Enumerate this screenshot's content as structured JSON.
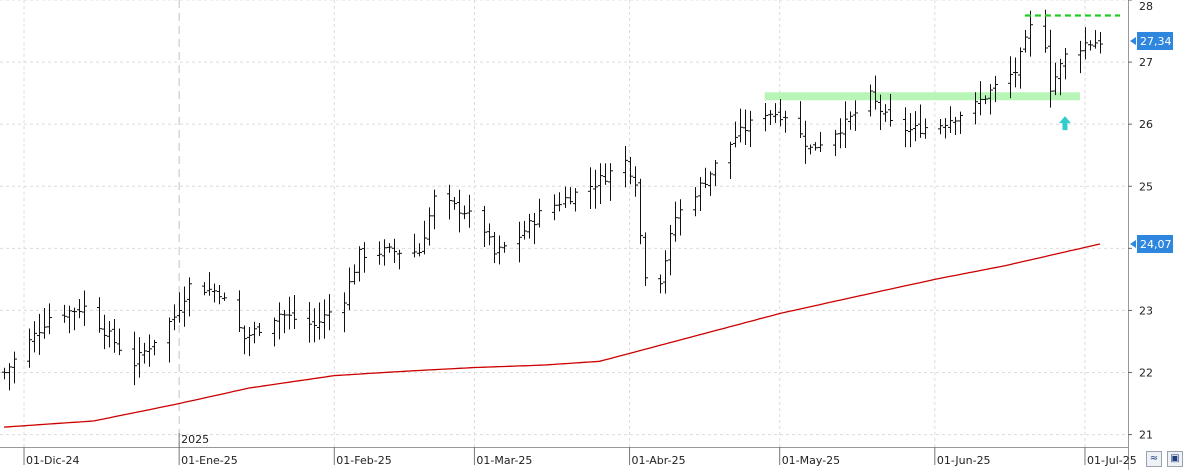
{
  "chart_data": {
    "type": "ohlc",
    "y_axis": {
      "ticks": [
        21,
        22,
        23,
        24,
        25,
        26,
        27,
        28
      ],
      "ylim": [
        20.8,
        28.0
      ],
      "side": "right"
    },
    "x_axis": {
      "ticks": [
        "01-Dic-24",
        "01-Ene-25",
        "01-Feb-25",
        "01-Mar-25",
        "01-Abr-25",
        "01-May-25",
        "01-Jun-25",
        "01-Jul-25"
      ],
      "year_label": "2025",
      "year_marker_at": "01-Ene-25"
    },
    "grid": true,
    "last_price": {
      "value": 27.34,
      "label": "27,34",
      "color": "#2e86de"
    },
    "moving_average": {
      "value": 24.07,
      "label": "24,07",
      "color": "#cc0000"
    },
    "resistance_level": {
      "value": 27.75,
      "color": "#22cc22"
    },
    "support_zone": {
      "value": 26.45,
      "color": "#aaf5aa"
    },
    "arrow_color": "#33cccc",
    "price_keypoints": [
      [
        "2024-11-27",
        22.0
      ],
      [
        "2024-12-06",
        22.9
      ],
      [
        "2024-12-13",
        23.05
      ],
      [
        "2024-12-20",
        22.4
      ],
      [
        "2024-12-23",
        22.15
      ],
      [
        "2024-12-31",
        22.9
      ],
      [
        "2025-01-03",
        23.4
      ],
      [
        "2025-01-09",
        23.3
      ],
      [
        "2025-01-14",
        22.55
      ],
      [
        "2025-01-21",
        22.95
      ],
      [
        "2025-01-28",
        22.75
      ],
      [
        "2025-02-03",
        23.2
      ],
      [
        "2025-02-06",
        23.9
      ],
      [
        "2025-02-11",
        23.95
      ],
      [
        "2025-02-18",
        23.95
      ],
      [
        "2025-02-21",
        24.8
      ],
      [
        "2025-02-27",
        24.6
      ],
      [
        "2025-03-03",
        24.3
      ],
      [
        "2025-03-05",
        23.9
      ],
      [
        "2025-03-10",
        24.2
      ],
      [
        "2025-03-14",
        24.55
      ],
      [
        "2025-03-19",
        24.8
      ],
      [
        "2025-03-25",
        25.05
      ],
      [
        "2025-03-31",
        25.4
      ],
      [
        "2025-04-02",
        25.1
      ],
      [
        "2025-04-03",
        24.2
      ],
      [
        "2025-04-04",
        23.6
      ],
      [
        "2025-04-07",
        23.5
      ],
      [
        "2025-04-10",
        24.5
      ],
      [
        "2025-04-16",
        25.1
      ],
      [
        "2025-04-22",
        25.8
      ],
      [
        "2025-04-28",
        26.2
      ],
      [
        "2025-05-02",
        26.15
      ],
      [
        "2025-05-07",
        25.6
      ],
      [
        "2025-05-14",
        26.0
      ],
      [
        "2025-05-19",
        26.45
      ],
      [
        "2025-05-23",
        26.0
      ],
      [
        "2025-05-27",
        25.9
      ],
      [
        "2025-06-02",
        26.0
      ],
      [
        "2025-06-09",
        26.3
      ],
      [
        "2025-06-13",
        26.6
      ],
      [
        "2025-06-17",
        26.85
      ],
      [
        "2025-06-20",
        27.55
      ],
      [
        "2025-06-23",
        27.3
      ],
      [
        "2025-06-24",
        26.6
      ],
      [
        "2025-06-27",
        27.1
      ],
      [
        "2025-07-01",
        27.3
      ],
      [
        "2025-07-04",
        27.34
      ]
    ],
    "ma_keypoints": [
      [
        "2024-11-27",
        21.12
      ],
      [
        "2024-12-15",
        21.22
      ],
      [
        "2025-01-01",
        21.5
      ],
      [
        "2025-01-15",
        21.75
      ],
      [
        "2025-02-01",
        21.95
      ],
      [
        "2025-02-15",
        22.02
      ],
      [
        "2025-03-01",
        22.08
      ],
      [
        "2025-03-15",
        22.12
      ],
      [
        "2025-03-26",
        22.18
      ],
      [
        "2025-04-10",
        22.5
      ],
      [
        "2025-05-01",
        22.95
      ],
      [
        "2025-05-15",
        23.2
      ],
      [
        "2025-06-01",
        23.5
      ],
      [
        "2025-06-15",
        23.72
      ],
      [
        "2025-07-04",
        24.07
      ]
    ]
  }
}
